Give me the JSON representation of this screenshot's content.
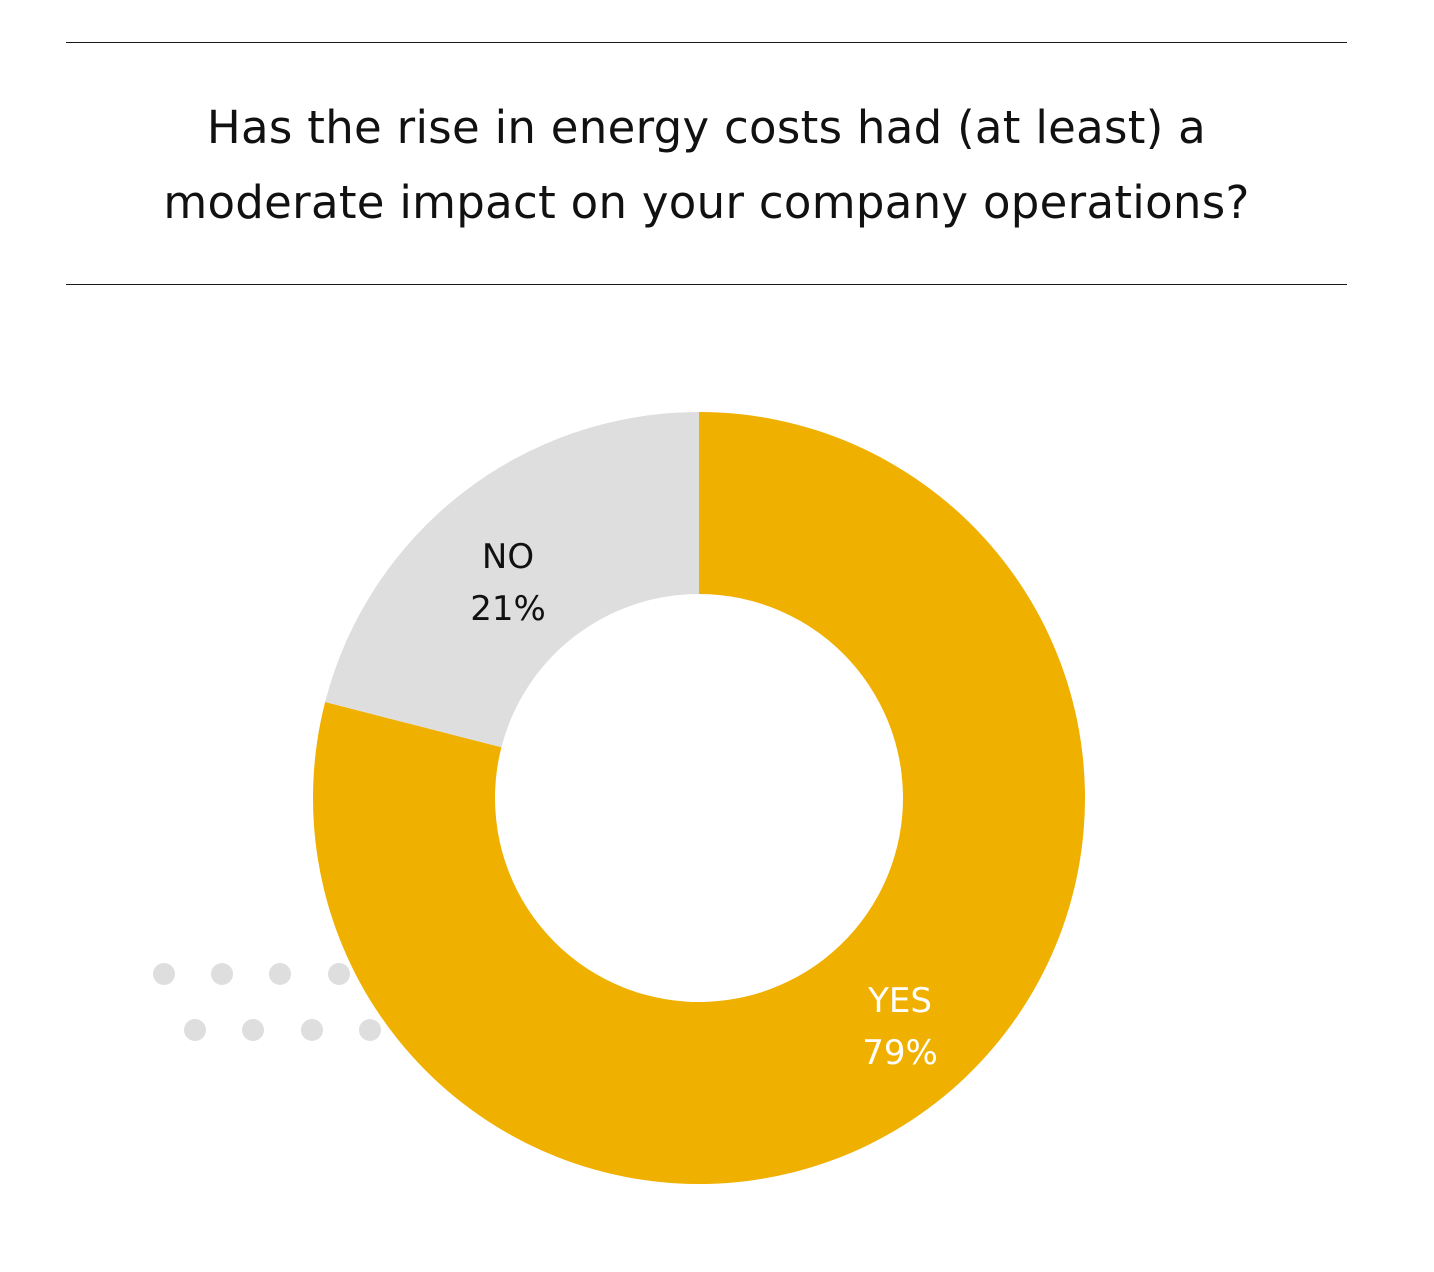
{
  "chart_data": {
    "type": "pie",
    "variant": "donut",
    "title_lines": [
      "Has the rise in energy costs had (at least) a",
      "moderate impact on your company operations?"
    ],
    "categories": [
      "YES",
      "NO"
    ],
    "values": [
      79,
      21
    ],
    "value_labels": [
      "79%",
      "21%"
    ],
    "colors": [
      "#F0B000",
      "#DEDEDE"
    ],
    "label_colors": [
      "#FFFFFF",
      "#111111"
    ],
    "legend": "none",
    "decoration": {
      "dot_color": "#DEDEDE"
    }
  }
}
